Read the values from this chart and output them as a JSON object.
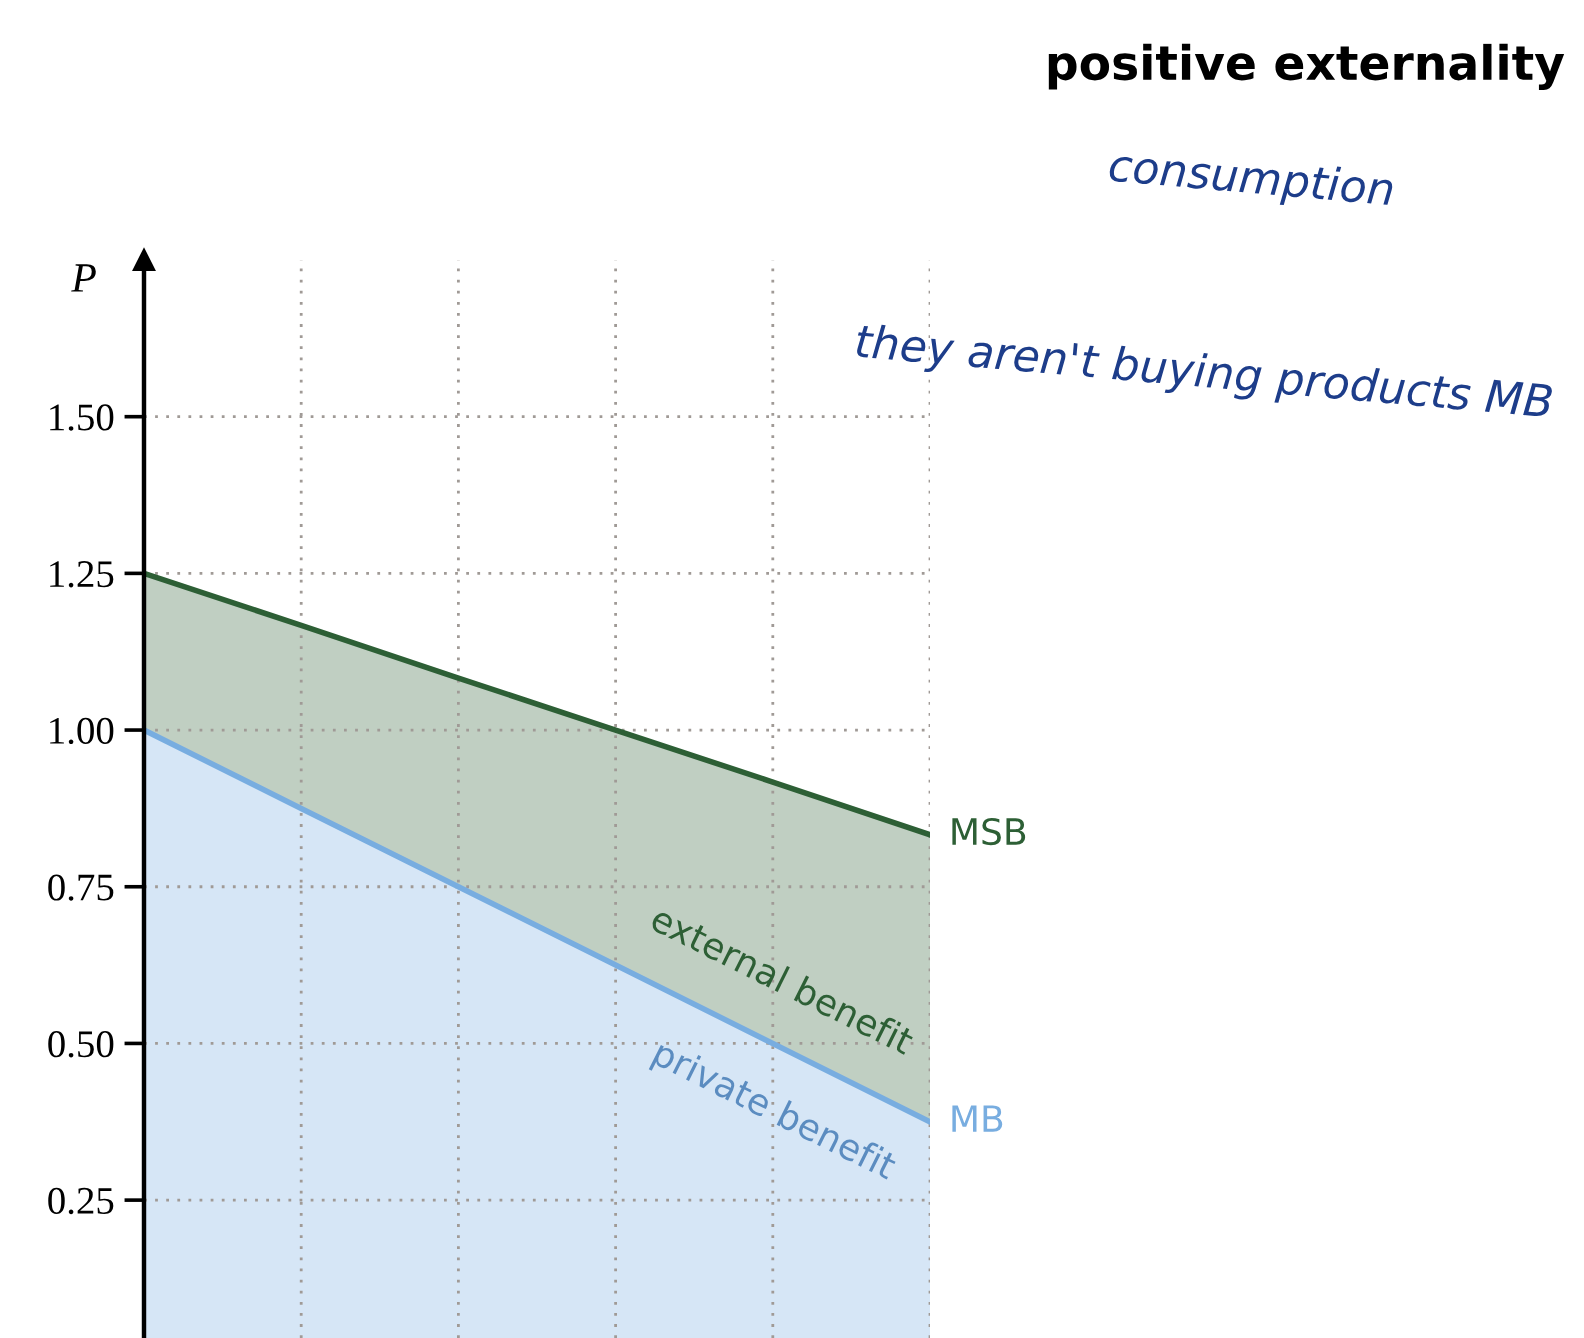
{
  "chart_data": {
    "type": "area",
    "title": "positive externality",
    "ylabel": "P",
    "categories": [
      null,
      null,
      null,
      null,
      null,
      null
    ],
    "series": [
      {
        "name": "MSB",
        "color": "#2d5f35",
        "values": [
          1.25,
          1.167,
          1.083,
          1.0,
          0.917,
          0.833
        ]
      },
      {
        "name": "MB",
        "color": "#78ade0",
        "values": [
          1.0,
          0.875,
          0.75,
          0.625,
          0.5,
          0.375
        ]
      }
    ],
    "ylim": [
      0.03,
      1.75
    ],
    "yticks": [
      {
        "value": 0.25,
        "label": "0.25"
      },
      {
        "value": 0.5,
        "label": "0.50"
      },
      {
        "value": 0.75,
        "label": "0.75"
      },
      {
        "value": 1.0,
        "label": "1.00"
      },
      {
        "value": 1.25,
        "label": "1.25"
      },
      {
        "value": 1.5,
        "label": "1.50"
      }
    ],
    "tick_labels": "y",
    "grid": true,
    "line_style": "solid",
    "marker": "none",
    "annotations": [
      "external benefit",
      "private benefit",
      "consumption",
      "they aren't buying products MB"
    ]
  }
}
